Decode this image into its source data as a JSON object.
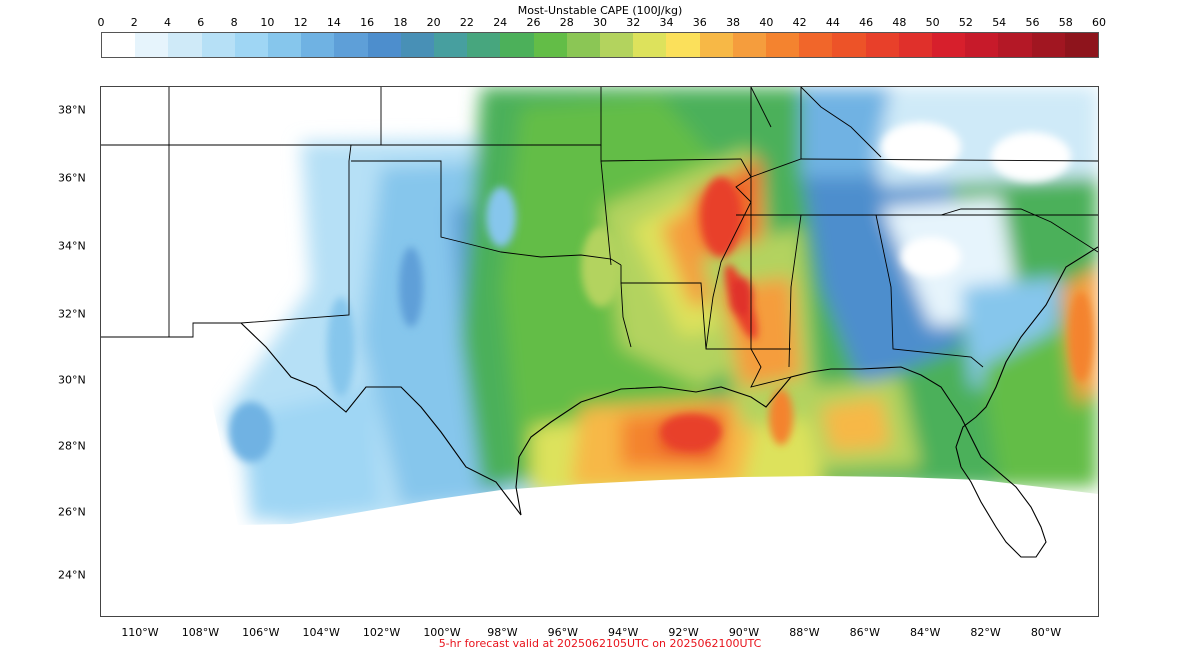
{
  "colorbar": {
    "title": "Most-Unstable CAPE (100J/kg)",
    "ticks": [
      "0",
      "2",
      "4",
      "6",
      "8",
      "10",
      "12",
      "14",
      "16",
      "18",
      "20",
      "22",
      "24",
      "26",
      "28",
      "30",
      "32",
      "34",
      "36",
      "38",
      "40",
      "42",
      "44",
      "46",
      "48",
      "50",
      "52",
      "54",
      "56",
      "58",
      "60"
    ],
    "colors": [
      "#ffffff",
      "#e6f4fc",
      "#cfeaf8",
      "#b6e0f6",
      "#9fd6f4",
      "#86c6ec",
      "#6fb2e3",
      "#5e9fd8",
      "#4d8ecd",
      "#4890b6",
      "#479f9f",
      "#47a67e",
      "#4cb05a",
      "#63bd47",
      "#8bc655",
      "#b3d35e",
      "#dde25c",
      "#fbe05b",
      "#f7b846",
      "#f59d3d",
      "#f4832f",
      "#f1662a",
      "#ed5328",
      "#e8402a",
      "#e0302b",
      "#d71f2c",
      "#c71a2a",
      "#b41826",
      "#a11621",
      "#8e141c"
    ]
  },
  "map": {
    "lat_labels": [
      "38°N",
      "36°N",
      "34°N",
      "32°N",
      "30°N",
      "28°N",
      "26°N",
      "24°N"
    ],
    "lon_labels": [
      "110°W",
      "108°W",
      "106°W",
      "104°W",
      "102°W",
      "100°W",
      "98°W",
      "96°W",
      "94°W",
      "92°W",
      "90°W",
      "88°W",
      "86°W",
      "84°W",
      "82°W",
      "80°W"
    ]
  },
  "caption": "5-hr forecast valid at 2025062105UTC on 2025062100UTC"
}
